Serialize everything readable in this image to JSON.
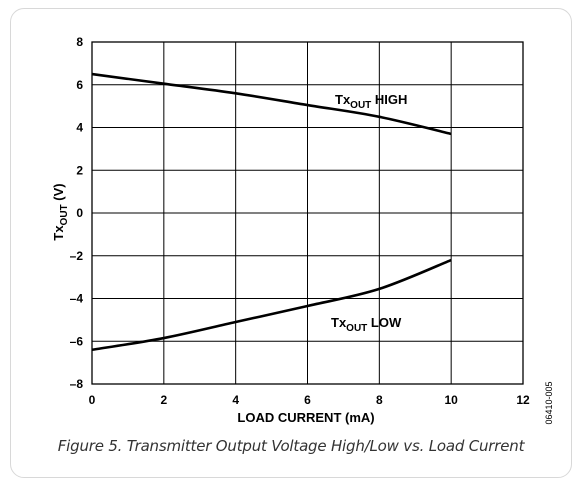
{
  "chart_data": {
    "type": "line",
    "xlabel": "LOAD CURRENT (mA)",
    "ylabel": {
      "main": "Tx",
      "sub": "OUT",
      "unit": " (V)"
    },
    "xlim": [
      0,
      12
    ],
    "ylim": [
      -8,
      8
    ],
    "x_ticks": [
      "0",
      "2",
      "4",
      "6",
      "8",
      "10",
      "12"
    ],
    "y_ticks": [
      "8",
      "6",
      "4",
      "2",
      "0",
      "–2",
      "–4",
      "–6",
      "–8"
    ],
    "grid": true,
    "series": [
      {
        "name": {
          "main": "Tx",
          "sub": "OUT",
          "suffix": " HIGH"
        },
        "x": [
          0,
          2,
          4,
          6,
          8,
          10
        ],
        "y": [
          6.5,
          6.05,
          5.6,
          5.05,
          4.5,
          3.7
        ]
      },
      {
        "name": {
          "main": "Tx",
          "sub": "OUT",
          "suffix": " LOW"
        },
        "x": [
          0,
          2,
          4,
          6,
          8,
          10
        ],
        "y": [
          -6.4,
          -5.85,
          -5.1,
          -4.35,
          -3.55,
          -2.2
        ]
      }
    ]
  },
  "figure_id": "06410-005",
  "caption": "Figure 5. Transmitter Output Voltage High/Low vs. Load Current",
  "style": {
    "line_color": "#000000",
    "grid_color": "#000000"
  }
}
